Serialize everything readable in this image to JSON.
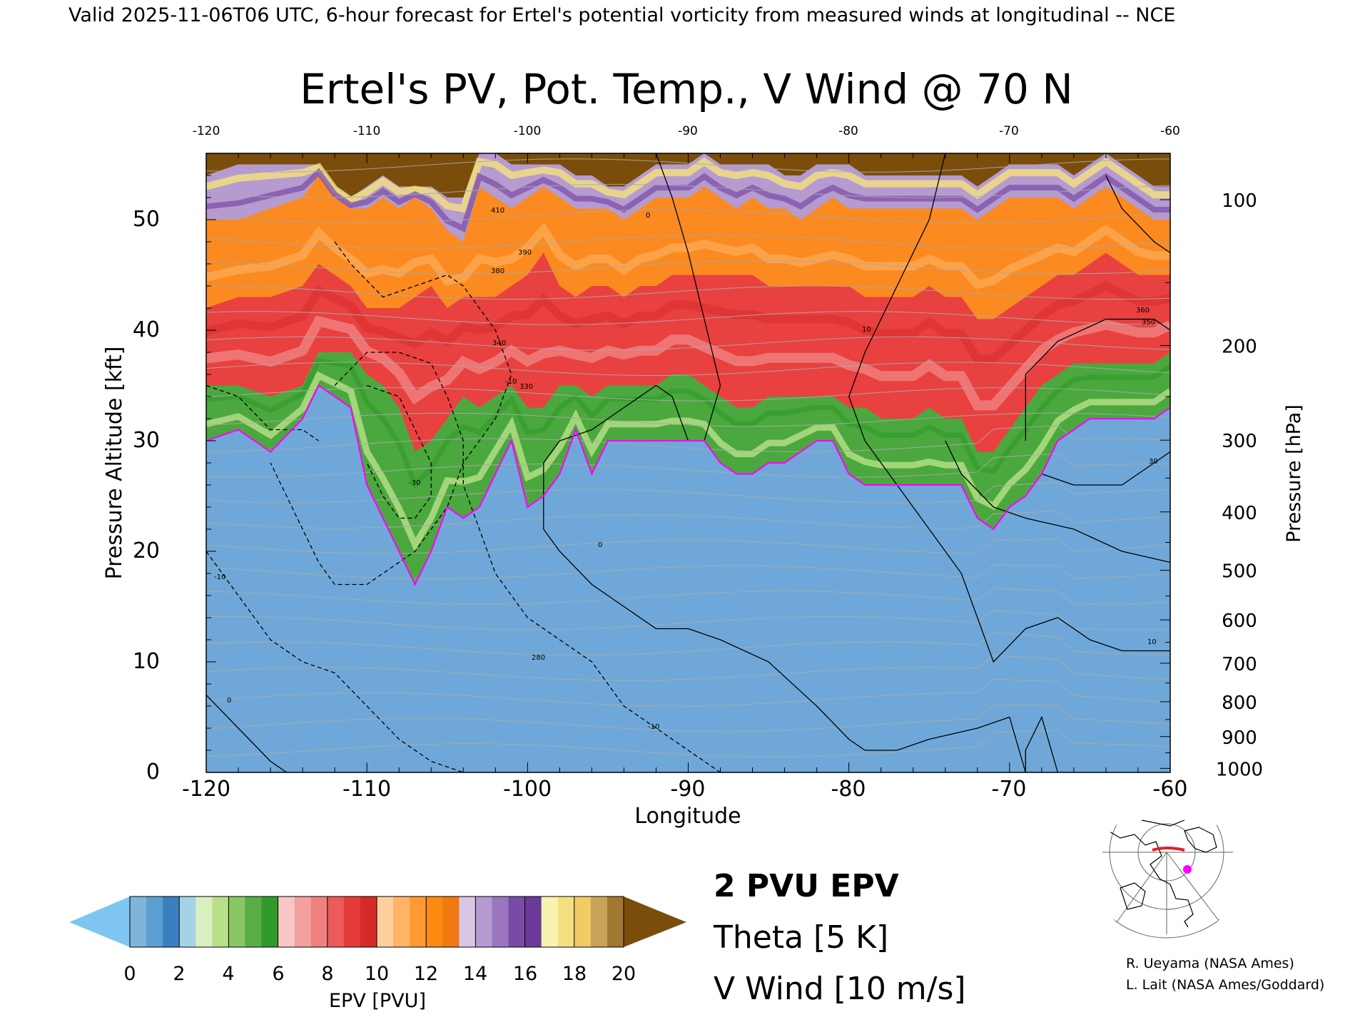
{
  "header": {
    "valid_line": "Valid 2025-11-06T06 UTC, 6-hour forecast for Ertel's potential vorticity from measured winds at longitudinal -- NCE"
  },
  "credits": {
    "line1": "R. Ueyama (NASA Ames)",
    "line2": "L. Lait (NASA Ames/Goddard)"
  },
  "chart_data": {
    "type": "heatmap",
    "title": "Ertel's PV, Pot. Temp., V Wind @ 70 N",
    "xlabel": "Longitude",
    "ylabel": "Pressure Altitude [kft]",
    "y2label": "Pressure [hPa]",
    "xlim": [
      -120,
      -60
    ],
    "ylim": [
      0,
      56
    ],
    "x_ticks": [
      "-120",
      "-110",
      "-100",
      "-90",
      "-80",
      "-70",
      "-60"
    ],
    "y_ticks": [
      "0",
      "10",
      "20",
      "30",
      "40",
      "50"
    ],
    "x_top_ticks": [
      "-120",
      "-110",
      "-100",
      "-90",
      "-80",
      "-70",
      "-60"
    ],
    "pressure_ticks": [
      {
        "hpa": 100,
        "label": "100"
      },
      {
        "hpa": 200,
        "label": "200"
      },
      {
        "hpa": 300,
        "label": "300"
      },
      {
        "hpa": 400,
        "label": "400"
      },
      {
        "hpa": 500,
        "label": "500"
      },
      {
        "hpa": 600,
        "label": "600"
      },
      {
        "hpa": 700,
        "label": "700"
      },
      {
        "hpa": 800,
        "label": "800"
      },
      {
        "hpa": 900,
        "label": "900"
      },
      {
        "hpa": 1000,
        "label": "1000"
      }
    ],
    "epv_bands": {
      "x": [
        -120,
        -118,
        -116,
        -114,
        -113,
        -112,
        -111,
        -110,
        -109,
        -108,
        -107,
        -106,
        -105,
        -104,
        -103,
        -102,
        -101,
        -100,
        -99,
        -98,
        -97,
        -96,
        -95,
        -94,
        -93,
        -92,
        -91,
        -90,
        -89,
        -88,
        -87,
        -86,
        -85,
        -84,
        -83,
        -82,
        -81,
        -80,
        -79,
        -78,
        -77,
        -76,
        -75,
        -74,
        -73,
        -72,
        -71,
        -70,
        -69,
        -68,
        -67,
        -66,
        -65,
        -64,
        -63,
        -62,
        -61,
        -60
      ],
      "pv2": [
        30,
        31,
        29,
        32,
        35,
        34,
        33,
        26,
        23,
        20,
        17,
        20,
        24,
        23,
        24,
        27,
        30,
        24,
        25,
        27,
        31,
        27,
        30,
        30,
        30,
        30,
        30,
        30,
        30,
        28,
        27,
        27,
        28,
        28,
        29,
        30,
        30,
        27,
        26,
        26,
        26,
        26,
        26,
        26,
        26,
        23,
        22,
        24,
        25,
        27,
        30,
        31,
        32,
        32,
        32,
        32,
        32,
        33
      ],
      "pv6": [
        35,
        35,
        34,
        35,
        38,
        38,
        38,
        36,
        35,
        33,
        29,
        30,
        32,
        34,
        33,
        34,
        35,
        33,
        33,
        35,
        35,
        34,
        35,
        35,
        35,
        35,
        36,
        36,
        35,
        34,
        33,
        33,
        34,
        34,
        34,
        34,
        34,
        33,
        33,
        32,
        32,
        32,
        33,
        32,
        32,
        29,
        29,
        31,
        33,
        35,
        36,
        37,
        37,
        37,
        37,
        37,
        37,
        38
      ],
      "pv12": [
        42,
        43,
        43,
        44,
        46,
        45,
        44,
        42,
        42,
        42,
        43,
        44,
        42,
        43,
        43,
        43,
        44,
        45,
        47,
        44,
        43,
        44,
        44,
        43,
        44,
        44,
        45,
        45,
        45,
        45,
        45,
        45,
        44,
        44,
        44,
        44,
        44,
        44,
        43,
        43,
        43,
        43,
        44,
        43,
        43,
        41,
        41,
        42,
        43,
        44,
        45,
        45,
        46,
        47,
        46,
        45,
        45,
        45
      ],
      "pv16": [
        50,
        50,
        51,
        52,
        54,
        52,
        51,
        51,
        52,
        51,
        52,
        51,
        49,
        48,
        53,
        52,
        51,
        52,
        53,
        52,
        51,
        51,
        51,
        50,
        51,
        52,
        52,
        52,
        53,
        52,
        51,
        52,
        51,
        51,
        50,
        51,
        52,
        51,
        51,
        51,
        51,
        51,
        51,
        51,
        51,
        50,
        51,
        52,
        52,
        52,
        52,
        51,
        52,
        53,
        52,
        51,
        50,
        50
      ],
      "pv20": [
        54,
        55,
        55,
        55,
        55,
        53,
        52,
        53,
        54,
        53,
        53,
        53,
        52,
        52,
        56,
        56,
        55,
        55,
        55,
        55,
        54,
        54,
        53,
        53,
        54,
        55,
        55,
        55,
        56,
        55,
        55,
        55,
        55,
        54,
        54,
        55,
        55,
        55,
        54,
        54,
        54,
        54,
        54,
        54,
        54,
        53,
        54,
        55,
        55,
        55,
        55,
        54,
        55,
        56,
        55,
        54,
        53,
        53
      ]
    },
    "colorbar": {
      "label": "EPV [PVU]",
      "ticks": [
        "0",
        "2",
        "4",
        "6",
        "8",
        "10",
        "12",
        "14",
        "16",
        "18",
        "20"
      ],
      "under_color": "#7ec6f0",
      "over_color": "#7a4d0b",
      "colors": [
        "#7fb4db",
        "#5b9fd1",
        "#3a80bf",
        "#a6d2e8",
        "#d9efc2",
        "#b9e08a",
        "#88c664",
        "#58ad45",
        "#2f9a2a",
        "#f7c7c7",
        "#f4a0a0",
        "#f07f7f",
        "#ec5a5a",
        "#e33a3a",
        "#d62a2a",
        "#fed0a0",
        "#fdb466",
        "#fd9a33",
        "#fb8a10",
        "#f07810",
        "#d8c6e5",
        "#b69bd1",
        "#9a76c0",
        "#7a4ba6",
        "#6a3a96",
        "#f8f3b0",
        "#f5e080",
        "#f1cc65",
        "#c9a35a",
        "#a07832"
      ]
    },
    "legend": {
      "pv2": "2 PVU EPV",
      "theta": "Theta [5 K]",
      "vwind": "V Wind [10 m/s]"
    },
    "legend_colors": {
      "pv2": "#ff00ff",
      "theta": "#aaaaaa",
      "vwind": "#000000"
    },
    "theta_levels_labeled": [
      "280",
      "330",
      "340",
      "350",
      "360",
      "380",
      "390",
      "410"
    ],
    "vwind_labels": [
      "0",
      "10",
      "30",
      "-10",
      "-30"
    ],
    "map_inset": "polar stereographic map with 70 N cross-section line and marker"
  }
}
